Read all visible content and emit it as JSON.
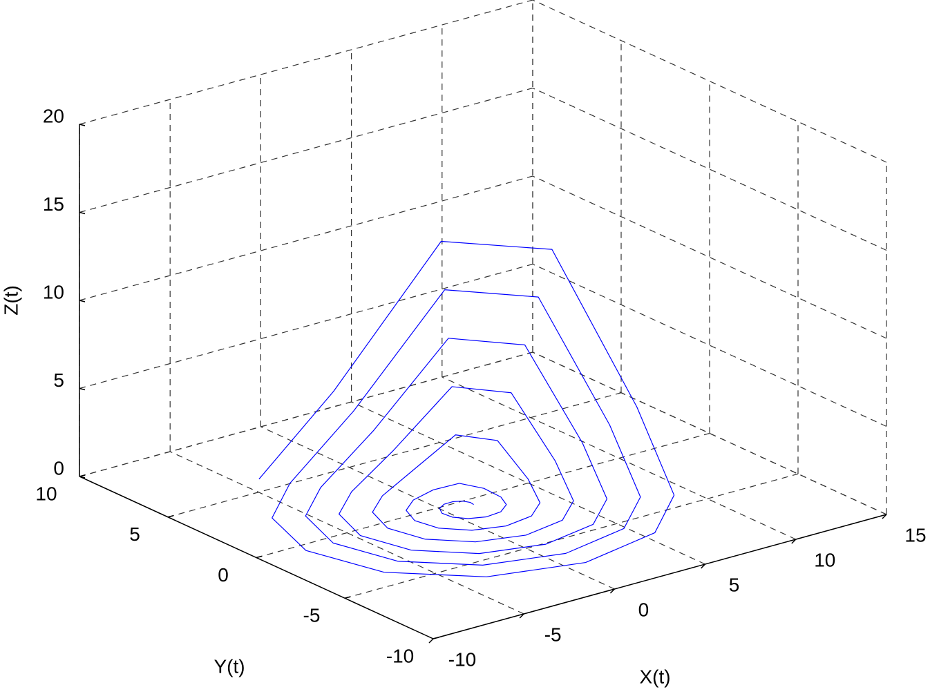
{
  "chart_data": {
    "type": "line3d",
    "xlabel": "X(t)",
    "ylabel": "Y(t)",
    "zlabel": "Z(t)",
    "xlim": [
      -10,
      15
    ],
    "ylim": [
      -10,
      10
    ],
    "zlim": [
      0,
      20
    ],
    "xticks": [
      -10,
      -5,
      0,
      5,
      10,
      15
    ],
    "yticks": [
      -10,
      -5,
      0,
      5,
      10
    ],
    "zticks": [
      0,
      5,
      10,
      15,
      20
    ],
    "grid": true,
    "series": [
      {
        "color": "#0000ff",
        "x": [
          1.5,
          1.54,
          1.38,
          1,
          0.5,
          0.03,
          -0.25,
          -0.19,
          0.25,
          1,
          1.88,
          2.62,
          3,
          2.84,
          2.13,
          1,
          -0.25,
          -1.27,
          -1.75,
          -1.49,
          -0.5,
          1,
          2.63,
          3.92,
          4.5,
          4.14,
          2.88,
          1,
          -1,
          -2.57,
          -3.25,
          -2.79,
          -1.25,
          1,
          3.38,
          5.22,
          6,
          5.44,
          3.63,
          1,
          -1.75,
          -3.87,
          -4.75,
          -4.09,
          -2,
          1,
          4.13,
          6.52,
          7.5,
          6.74,
          4.38,
          1,
          -2.5,
          -5.17,
          -6.25,
          -5.39,
          -2.75,
          1,
          4.88,
          7.82,
          9,
          8.04,
          5.13,
          1,
          -3.25,
          -6.47,
          -7.75,
          -6.69,
          -3.5,
          1,
          5.63,
          9.12,
          10.5,
          9.34,
          5.88,
          1,
          -4
        ],
        "y": [
          -0.5,
          -0.27,
          -0.01,
          0.16,
          0.15,
          -0.08,
          -0.5,
          -1.02,
          -1.47,
          -1.72,
          -1.64,
          -1.2,
          -0.5,
          0.3,
          0.96,
          1.28,
          1.12,
          0.48,
          -0.5,
          -1.58,
          -2.45,
          -2.84,
          -2.61,
          -1.77,
          -0.5,
          0.86,
          1.94,
          2.41,
          2.1,
          1.05,
          -0.5,
          -2.14,
          -3.42,
          -3.97,
          -3.59,
          -2.33,
          -0.5,
          1.42,
          2.91,
          3.53,
          3.07,
          1.61,
          -0.5,
          -2.7,
          -4.4,
          -5.09,
          -4.56,
          -2.89,
          -0.5,
          1.98,
          3.88,
          4.66,
          4.05,
          2.17,
          -0.5,
          -3.27,
          -5.37,
          -6.22,
          -5.53,
          -3.45,
          -0.5,
          2.55,
          4.86,
          5.78,
          5.02,
          2.73,
          -0.5,
          -3.83,
          -6.35,
          -7.34,
          -6.51,
          -4.02,
          -0.5,
          3.11,
          5.83,
          6.91,
          6
        ],
        "z": [
          0,
          0,
          0,
          0,
          0,
          0,
          0,
          0,
          0,
          0,
          0,
          0,
          0,
          0.17,
          0.35,
          0.15,
          0,
          0,
          0,
          0,
          0,
          0,
          0,
          0,
          0.6,
          2.26,
          2.44,
          0.75,
          0,
          0,
          0,
          0,
          0,
          0,
          0,
          0,
          1.2,
          4.35,
          4.52,
          1.35,
          0,
          0,
          0,
          0,
          0,
          0,
          0,
          0,
          1.8,
          6.44,
          6.61,
          1.95,
          0,
          0,
          0,
          0,
          0,
          0,
          0,
          0,
          2.4,
          8.53,
          8.7,
          2.55,
          0,
          0,
          0,
          0,
          0,
          0,
          0,
          0,
          3,
          10.61,
          10.79,
          3.15,
          0
        ]
      }
    ]
  }
}
